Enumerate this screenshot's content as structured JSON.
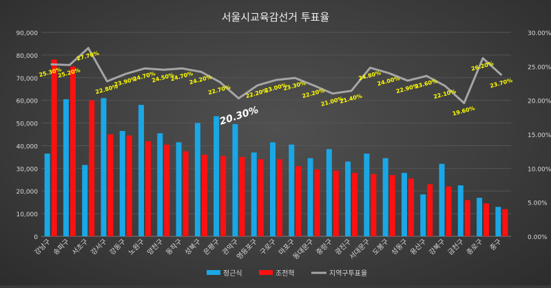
{
  "chart_data": {
    "type": "bar",
    "title": "서울시교육감선거 투표율",
    "categories": [
      "강남구",
      "송파구",
      "서초구",
      "강서구",
      "강동구",
      "노원구",
      "양천구",
      "동작구",
      "성북구",
      "은평구",
      "관악구",
      "영등포구",
      "구로구",
      "마포구",
      "동대문구",
      "중랑구",
      "광진구",
      "서대문구",
      "도봉구",
      "성동구",
      "용산구",
      "강북구",
      "금천구",
      "종로구",
      "중구"
    ],
    "series": [
      {
        "name": "정근식",
        "axis": "left",
        "color": "#1aa7e6",
        "values": [
          36500,
          60500,
          31500,
          61000,
          46500,
          58000,
          45500,
          41500,
          50000,
          53000,
          49500,
          37000,
          41500,
          40500,
          34500,
          38500,
          33000,
          36500,
          34500,
          28000,
          18500,
          32000,
          22500,
          17000,
          13000
        ]
      },
      {
        "name": "조전혁",
        "axis": "left",
        "color": "#ff1010",
        "values": [
          78000,
          75000,
          60000,
          45000,
          44500,
          42000,
          40500,
          37500,
          36000,
          35500,
          35000,
          34000,
          34000,
          31000,
          29500,
          29000,
          28000,
          27500,
          27000,
          25500,
          23000,
          22000,
          16000,
          14500,
          12000
        ]
      },
      {
        "name": "지역구투표율",
        "axis": "right",
        "color": "#a6a6a6",
        "values": [
          25.3,
          25.2,
          27.7,
          22.8,
          23.9,
          24.7,
          24.5,
          24.7,
          24.2,
          22.7,
          20.3,
          22.2,
          23.0,
          23.3,
          22.2,
          21.0,
          21.4,
          24.8,
          24.0,
          22.9,
          23.6,
          22.1,
          19.6,
          26.2,
          23.7
        ]
      }
    ],
    "line_labels": [
      "25.30%",
      "25.20%",
      "27.70%",
      "22.80%",
      "23.90%",
      "24.70%",
      "24.50%",
      "24.70%",
      "24.20%",
      "22.70%",
      "20.30%",
      "22.20%",
      "23.00%",
      "23.30%",
      "22.20%",
      "21.00%",
      "21.40%",
      "24.80%",
      "24.00%",
      "22.90%",
      "23.60%",
      "22.10%",
      "19.60%",
      "26.20%",
      "23.70%"
    ],
    "highlight_index": 10,
    "ylim_left": [
      0,
      90000
    ],
    "yticks_left": [
      "0",
      "10,000",
      "20,000",
      "30,000",
      "40,000",
      "50,000",
      "60,000",
      "70,000",
      "80,000",
      "90,000"
    ],
    "ylim_right": [
      0,
      30
    ],
    "yticks_right": [
      "0.00%",
      "5.00%",
      "10.00%",
      "15.00%",
      "20.00%",
      "25.00%",
      "30.00%"
    ],
    "grid": true,
    "legend_position": "bottom"
  }
}
